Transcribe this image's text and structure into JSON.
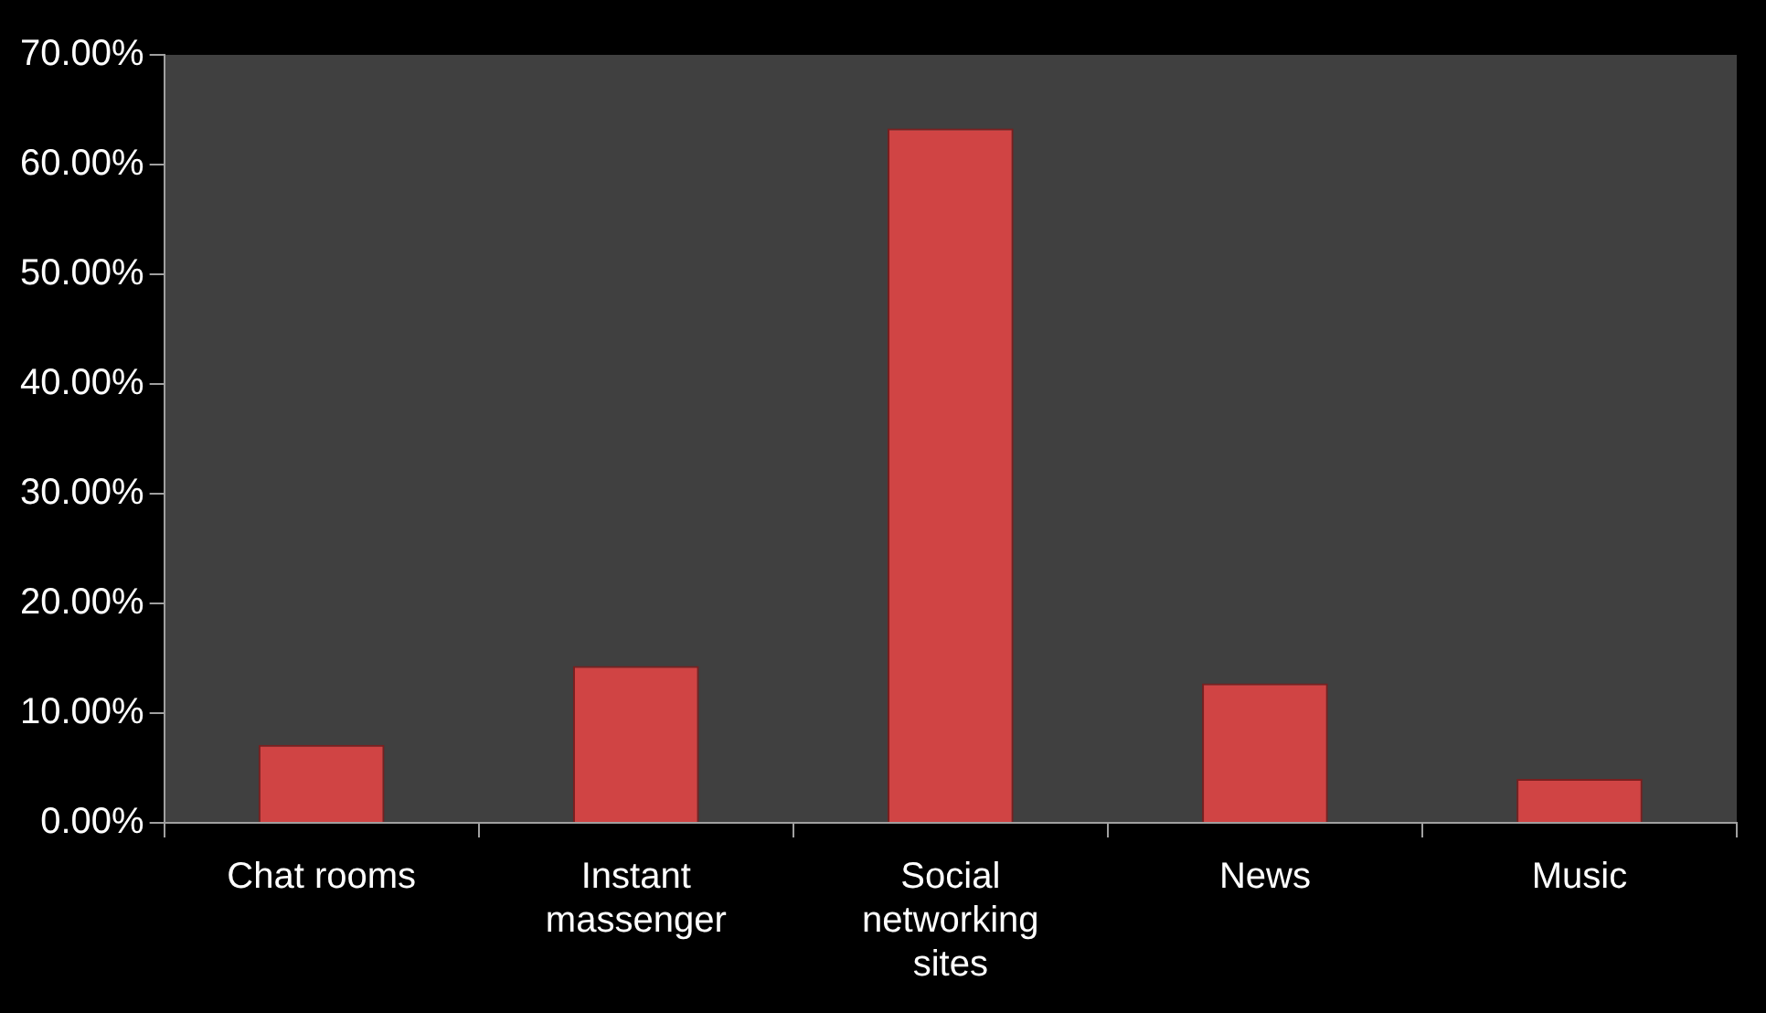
{
  "chart_data": {
    "type": "bar",
    "categories": [
      "Chat rooms",
      "Instant massenger",
      "Social networking sites",
      "News",
      "Music"
    ],
    "values": [
      7.1,
      14.3,
      63.3,
      12.7,
      4.0
    ],
    "color": "#d04444",
    "ylim": [
      0,
      70
    ],
    "yticks": [
      {
        "value": 0,
        "label": "0.00%"
      },
      {
        "value": 10,
        "label": "10.00%"
      },
      {
        "value": 20,
        "label": "20.00%"
      },
      {
        "value": 30,
        "label": "30.00%"
      },
      {
        "value": 40,
        "label": "40.00%"
      },
      {
        "value": 50,
        "label": "50.00%"
      },
      {
        "value": 60,
        "label": "60.00%"
      },
      {
        "value": 70,
        "label": "70.00%"
      }
    ],
    "grid": false,
    "legend": false
  }
}
